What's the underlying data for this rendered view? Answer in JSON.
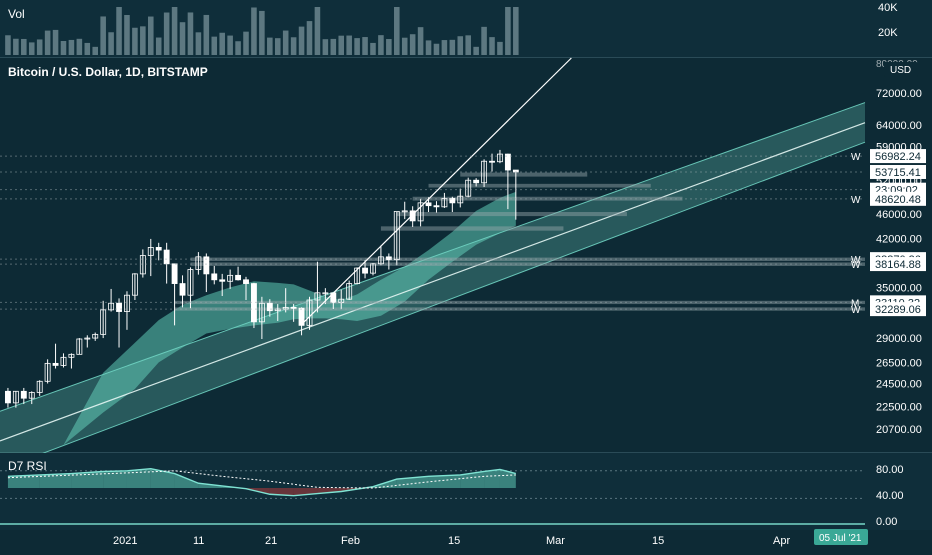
{
  "colors": {
    "background": "#0d2a35",
    "candle_up": "#ffffff",
    "candle_down": "#ffffff",
    "cloud_bull": "#5fc8b4",
    "cloud_bear": "#b03b3b",
    "channel": "#6fd3c2",
    "rsi_line": "#7fe3d3",
    "axis_text": "#ffffff",
    "badge_bg": "#ffffff",
    "badge_text": "#0d2a35",
    "date_badge_bg": "#3aa896"
  },
  "volume_panel": {
    "title": "Vol",
    "axis_labels": [
      "40K",
      "20K"
    ]
  },
  "main_panel": {
    "title": "Bitcoin / U.S. Dollar, 1D, BITSTAMP",
    "currency": "USD",
    "top_cut_label": "80000.00"
  },
  "rsi_panel": {
    "title": "D7 RSI",
    "axis_labels": [
      "80.00",
      "40.00",
      "0.00"
    ]
  },
  "time_axis": {
    "labels": [
      "2021",
      "11",
      "21",
      "Feb",
      "15",
      "Mar",
      "15",
      "Apr"
    ],
    "crosshair_date": "05 Jul '21"
  },
  "price_badges": [
    {
      "text": "56982.24",
      "value": 56982.24,
      "side_label": "W"
    },
    {
      "text": "53715.41",
      "value": 53715.41,
      "side_label": ""
    },
    {
      "text": "23:09:02",
      "value": 50300,
      "side_label": ""
    },
    {
      "text": "48620.48",
      "value": 48620.48,
      "side_label": "W"
    },
    {
      "text": "38870.36",
      "value": 38870.36,
      "side_label": "W"
    },
    {
      "text": "38164.88",
      "value": 38164.88,
      "side_label": "W"
    },
    {
      "text": "33110.32",
      "value": 33110.32,
      "side_label": "M"
    },
    {
      "text": "32289.06",
      "value": 32289.06,
      "side_label": "W"
    }
  ],
  "chart_data": {
    "type": "line",
    "title": "Bitcoin / U.S. Dollar, 1D, BITSTAMP",
    "price_axis": {
      "scale": "log",
      "ticks": [
        20700,
        22500,
        24500,
        26500,
        29000,
        32000,
        35000,
        38000,
        42000,
        46000,
        52000,
        59000,
        64000,
        72000
      ],
      "tick_labels": [
        "20700.00",
        "22500.00",
        "24500.00",
        "26500.00",
        "29000.00",
        "32000.00",
        "35000.00",
        "38000.00",
        "42000.00",
        "46000.00",
        "52000.00",
        "59000.00",
        "64000.00",
        "72000.00"
      ],
      "range": [
        19000,
        82000
      ]
    },
    "x_range": [
      "2020-12-20",
      "2021-04-08"
    ],
    "candles": [
      {
        "date": "2020-12-21",
        "open": 23800,
        "high": 24100,
        "low": 22400,
        "close": 22800
      },
      {
        "date": "2020-12-22",
        "open": 22800,
        "high": 23800,
        "low": 22400,
        "close": 23800
      },
      {
        "date": "2020-12-23",
        "open": 23800,
        "high": 24100,
        "low": 22700,
        "close": 23200
      },
      {
        "date": "2020-12-24",
        "open": 23200,
        "high": 23800,
        "low": 22700,
        "close": 23700
      },
      {
        "date": "2020-12-25",
        "open": 23700,
        "high": 24800,
        "low": 23400,
        "close": 24700
      },
      {
        "date": "2020-12-26",
        "open": 24700,
        "high": 26800,
        "low": 24500,
        "close": 26400
      },
      {
        "date": "2020-12-27",
        "open": 26400,
        "high": 28400,
        "low": 25900,
        "close": 26200
      },
      {
        "date": "2020-12-28",
        "open": 26200,
        "high": 27400,
        "low": 26000,
        "close": 27000
      },
      {
        "date": "2020-12-29",
        "open": 27000,
        "high": 27400,
        "low": 25900,
        "close": 27300
      },
      {
        "date": "2020-12-30",
        "open": 27300,
        "high": 29000,
        "low": 27300,
        "close": 28900
      },
      {
        "date": "2020-12-31",
        "open": 28900,
        "high": 29300,
        "low": 28000,
        "close": 29000
      },
      {
        "date": "2021-01-01",
        "open": 29000,
        "high": 29600,
        "low": 28700,
        "close": 29400
      },
      {
        "date": "2021-01-02",
        "open": 29400,
        "high": 33300,
        "low": 29000,
        "close": 32200
      },
      {
        "date": "2021-01-03",
        "open": 32200,
        "high": 34800,
        "low": 32000,
        "close": 33000
      },
      {
        "date": "2021-01-04",
        "open": 33000,
        "high": 33600,
        "low": 28000,
        "close": 32000
      },
      {
        "date": "2021-01-05",
        "open": 32000,
        "high": 34500,
        "low": 29900,
        "close": 34000
      },
      {
        "date": "2021-01-06",
        "open": 34000,
        "high": 36900,
        "low": 33400,
        "close": 36800
      },
      {
        "date": "2021-01-07",
        "open": 36800,
        "high": 40300,
        "low": 36300,
        "close": 39400
      },
      {
        "date": "2021-01-08",
        "open": 39400,
        "high": 41900,
        "low": 36500,
        "close": 40600
      },
      {
        "date": "2021-01-09",
        "open": 40600,
        "high": 41300,
        "low": 38700,
        "close": 40200
      },
      {
        "date": "2021-01-10",
        "open": 40200,
        "high": 41300,
        "low": 35500,
        "close": 38200
      },
      {
        "date": "2021-01-11",
        "open": 38200,
        "high": 38200,
        "low": 30400,
        "close": 35500
      },
      {
        "date": "2021-01-12",
        "open": 35500,
        "high": 36600,
        "low": 32500,
        "close": 34000
      },
      {
        "date": "2021-01-13",
        "open": 34000,
        "high": 37700,
        "low": 32400,
        "close": 37400
      },
      {
        "date": "2021-01-14",
        "open": 37400,
        "high": 39900,
        "low": 36700,
        "close": 39200
      },
      {
        "date": "2021-01-15",
        "open": 39200,
        "high": 39700,
        "low": 34400,
        "close": 36800
      },
      {
        "date": "2021-01-16",
        "open": 36800,
        "high": 37900,
        "low": 35400,
        "close": 36000
      },
      {
        "date": "2021-01-17",
        "open": 36000,
        "high": 36800,
        "low": 33900,
        "close": 35800
      },
      {
        "date": "2021-01-18",
        "open": 35800,
        "high": 37400,
        "low": 34800,
        "close": 36600
      },
      {
        "date": "2021-01-19",
        "open": 36600,
        "high": 37800,
        "low": 35900,
        "close": 36000
      },
      {
        "date": "2021-01-20",
        "open": 36000,
        "high": 36400,
        "low": 33400,
        "close": 35500
      },
      {
        "date": "2021-01-21",
        "open": 35500,
        "high": 35600,
        "low": 30100,
        "close": 30800
      },
      {
        "date": "2021-01-22",
        "open": 30800,
        "high": 33800,
        "low": 28900,
        "close": 33000
      },
      {
        "date": "2021-01-23",
        "open": 33000,
        "high": 33500,
        "low": 31400,
        "close": 32100
      },
      {
        "date": "2021-01-24",
        "open": 32100,
        "high": 32900,
        "low": 30900,
        "close": 32300
      },
      {
        "date": "2021-01-25",
        "open": 32300,
        "high": 34900,
        "low": 31900,
        "close": 32500
      },
      {
        "date": "2021-01-26",
        "open": 32500,
        "high": 32900,
        "low": 30800,
        "close": 32400
      },
      {
        "date": "2021-01-27",
        "open": 32400,
        "high": 32500,
        "low": 29300,
        "close": 30400
      },
      {
        "date": "2021-01-28",
        "open": 30400,
        "high": 33800,
        "low": 29900,
        "close": 33400
      },
      {
        "date": "2021-01-29",
        "open": 33400,
        "high": 38500,
        "low": 31900,
        "close": 34300
      },
      {
        "date": "2021-01-30",
        "open": 34300,
        "high": 34900,
        "low": 32900,
        "close": 34300
      },
      {
        "date": "2021-01-31",
        "open": 34300,
        "high": 34300,
        "low": 32300,
        "close": 33100
      },
      {
        "date": "2021-02-01",
        "open": 33100,
        "high": 34700,
        "low": 32300,
        "close": 33500
      },
      {
        "date": "2021-02-02",
        "open": 33500,
        "high": 35900,
        "low": 33400,
        "close": 35500
      },
      {
        "date": "2021-02-03",
        "open": 35500,
        "high": 37700,
        "low": 35400,
        "close": 37600
      },
      {
        "date": "2021-02-04",
        "open": 37600,
        "high": 38700,
        "low": 36200,
        "close": 36900
      },
      {
        "date": "2021-02-05",
        "open": 36900,
        "high": 38300,
        "low": 36600,
        "close": 38200
      },
      {
        "date": "2021-02-06",
        "open": 38200,
        "high": 40900,
        "low": 38000,
        "close": 39200
      },
      {
        "date": "2021-02-07",
        "open": 39200,
        "high": 39700,
        "low": 37400,
        "close": 38800
      },
      {
        "date": "2021-02-08",
        "open": 38800,
        "high": 46300,
        "low": 38000,
        "close": 46400
      },
      {
        "date": "2021-02-09",
        "open": 46400,
        "high": 48100,
        "low": 45100,
        "close": 46500
      },
      {
        "date": "2021-02-10",
        "open": 46500,
        "high": 47300,
        "low": 43800,
        "close": 44800
      },
      {
        "date": "2021-02-11",
        "open": 44800,
        "high": 48600,
        "low": 43900,
        "close": 47900
      },
      {
        "date": "2021-02-12",
        "open": 47900,
        "high": 48900,
        "low": 46300,
        "close": 47400
      },
      {
        "date": "2021-02-13",
        "open": 47400,
        "high": 48200,
        "low": 46200,
        "close": 47200
      },
      {
        "date": "2021-02-14",
        "open": 47200,
        "high": 49700,
        "low": 47000,
        "close": 48700
      },
      {
        "date": "2021-02-15",
        "open": 48700,
        "high": 49000,
        "low": 46300,
        "close": 47900
      },
      {
        "date": "2021-02-16",
        "open": 47900,
        "high": 50500,
        "low": 47100,
        "close": 49100
      },
      {
        "date": "2021-02-17",
        "open": 49100,
        "high": 52600,
        "low": 48900,
        "close": 52100
      },
      {
        "date": "2021-02-18",
        "open": 52100,
        "high": 52500,
        "low": 50900,
        "close": 51600
      },
      {
        "date": "2021-02-19",
        "open": 51600,
        "high": 56300,
        "low": 50800,
        "close": 55900
      },
      {
        "date": "2021-02-20",
        "open": 55900,
        "high": 57500,
        "low": 53800,
        "close": 55800
      },
      {
        "date": "2021-02-21",
        "open": 55800,
        "high": 58300,
        "low": 55500,
        "close": 57400
      },
      {
        "date": "2021-02-22",
        "open": 57400,
        "high": 57500,
        "low": 46800,
        "close": 54100
      },
      {
        "date": "2021-02-23",
        "open": 54100,
        "high": 54100,
        "low": 45000,
        "close": 53715
      }
    ],
    "resistance_zones": [
      {
        "from": "2021-02-16",
        "to": "2021-03-04",
        "low": 52800,
        "high": 53600
      },
      {
        "from": "2021-02-12",
        "to": "2021-03-12",
        "low": 50700,
        "high": 51400
      },
      {
        "from": "2021-02-10",
        "to": "2021-03-16",
        "low": 48300,
        "high": 49000
      },
      {
        "from": "2021-02-08",
        "to": "2021-03-09",
        "low": 45600,
        "high": 46300
      },
      {
        "from": "2021-02-06",
        "to": "2021-03-01",
        "low": 43200,
        "high": 43900
      },
      {
        "from": "2021-01-13",
        "to": "2021-04-08",
        "low": 38600,
        "high": 39100
      },
      {
        "from": "2021-01-13",
        "to": "2021-04-08",
        "low": 37900,
        "high": 38400
      },
      {
        "from": "2021-01-11",
        "to": "2021-04-08",
        "low": 32900,
        "high": 33300
      },
      {
        "from": "2021-01-11",
        "to": "2021-04-08",
        "low": 32100,
        "high": 32500
      }
    ],
    "trendline": {
      "from": {
        "date": "2021-01-27",
        "price": 30500
      },
      "to": {
        "date": "2021-03-02",
        "price": 82000
      }
    },
    "channel": {
      "lower": {
        "from": {
          "date": "2020-12-20",
          "price": 17800
        },
        "to": {
          "date": "2021-04-08",
          "price": 60000
        }
      },
      "mid": {
        "from": {
          "date": "2020-12-20",
          "price": 19800
        },
        "to": {
          "date": "2021-04-08",
          "price": 64500
        }
      },
      "upper": {
        "from": {
          "date": "2020-12-20",
          "price": 22100
        },
        "to": {
          "date": "2021-04-08",
          "price": 69500
        }
      }
    },
    "cloud": [
      {
        "date": "2020-12-28",
        "a": 19500,
        "b": 19500
      },
      {
        "date": "2021-01-02",
        "a": 25500,
        "b": 22000
      },
      {
        "date": "2021-01-06",
        "a": 28500,
        "b": 24000
      },
      {
        "date": "2021-01-09",
        "a": 31000,
        "b": 26500
      },
      {
        "date": "2021-01-12",
        "a": 32800,
        "b": 28000
      },
      {
        "date": "2021-01-15",
        "a": 34000,
        "b": 29500
      },
      {
        "date": "2021-01-18",
        "a": 35000,
        "b": 30000
      },
      {
        "date": "2021-01-21",
        "a": 35800,
        "b": 30400
      },
      {
        "date": "2021-01-24",
        "a": 35600,
        "b": 30700
      },
      {
        "date": "2021-01-26",
        "a": 35400,
        "b": 31100
      },
      {
        "date": "2021-01-28",
        "a": 34600,
        "b": 31200
      },
      {
        "date": "2021-01-30",
        "a": 33800,
        "b": 31200
      },
      {
        "date": "2021-02-01",
        "a": 33400,
        "b": 31100
      },
      {
        "date": "2021-02-03",
        "a": 34100,
        "b": 30900
      },
      {
        "date": "2021-02-06",
        "a": 36000,
        "b": 31500
      },
      {
        "date": "2021-02-09",
        "a": 37800,
        "b": 33200
      },
      {
        "date": "2021-02-12",
        "a": 40200,
        "b": 36000
      },
      {
        "date": "2021-02-15",
        "a": 43000,
        "b": 38500
      },
      {
        "date": "2021-02-18",
        "a": 46500,
        "b": 41000
      },
      {
        "date": "2021-02-21",
        "a": 48800,
        "b": 42800
      },
      {
        "date": "2021-02-23",
        "a": 49900,
        "b": 44000
      }
    ],
    "rsi": {
      "range": [
        0,
        100
      ],
      "series": [
        {
          "date": "2020-12-21",
          "value": 72
        },
        {
          "date": "2020-12-25",
          "value": 74
        },
        {
          "date": "2020-12-29",
          "value": 76
        },
        {
          "date": "2021-01-02",
          "value": 79
        },
        {
          "date": "2021-01-05",
          "value": 80
        },
        {
          "date": "2021-01-08",
          "value": 83
        },
        {
          "date": "2021-01-11",
          "value": 76
        },
        {
          "date": "2021-01-14",
          "value": 62
        },
        {
          "date": "2021-01-17",
          "value": 58
        },
        {
          "date": "2021-01-20",
          "value": 54
        },
        {
          "date": "2021-01-23",
          "value": 46
        },
        {
          "date": "2021-01-26",
          "value": 44
        },
        {
          "date": "2021-01-29",
          "value": 47
        },
        {
          "date": "2021-02-01",
          "value": 50
        },
        {
          "date": "2021-02-05",
          "value": 57
        },
        {
          "date": "2021-02-08",
          "value": 68
        },
        {
          "date": "2021-02-12",
          "value": 72
        },
        {
          "date": "2021-02-16",
          "value": 74
        },
        {
          "date": "2021-02-19",
          "value": 79
        },
        {
          "date": "2021-02-21",
          "value": 82
        },
        {
          "date": "2021-02-23",
          "value": 76
        }
      ],
      "signal": [
        {
          "date": "2020-12-21",
          "value": 70
        },
        {
          "date": "2021-01-05",
          "value": 77
        },
        {
          "date": "2021-01-11",
          "value": 80
        },
        {
          "date": "2021-01-17",
          "value": 72
        },
        {
          "date": "2021-01-23",
          "value": 65
        },
        {
          "date": "2021-01-29",
          "value": 56
        },
        {
          "date": "2021-02-05",
          "value": 55
        },
        {
          "date": "2021-02-12",
          "value": 64
        },
        {
          "date": "2021-02-19",
          "value": 72
        },
        {
          "date": "2021-02-23",
          "value": 74
        }
      ]
    }
  }
}
